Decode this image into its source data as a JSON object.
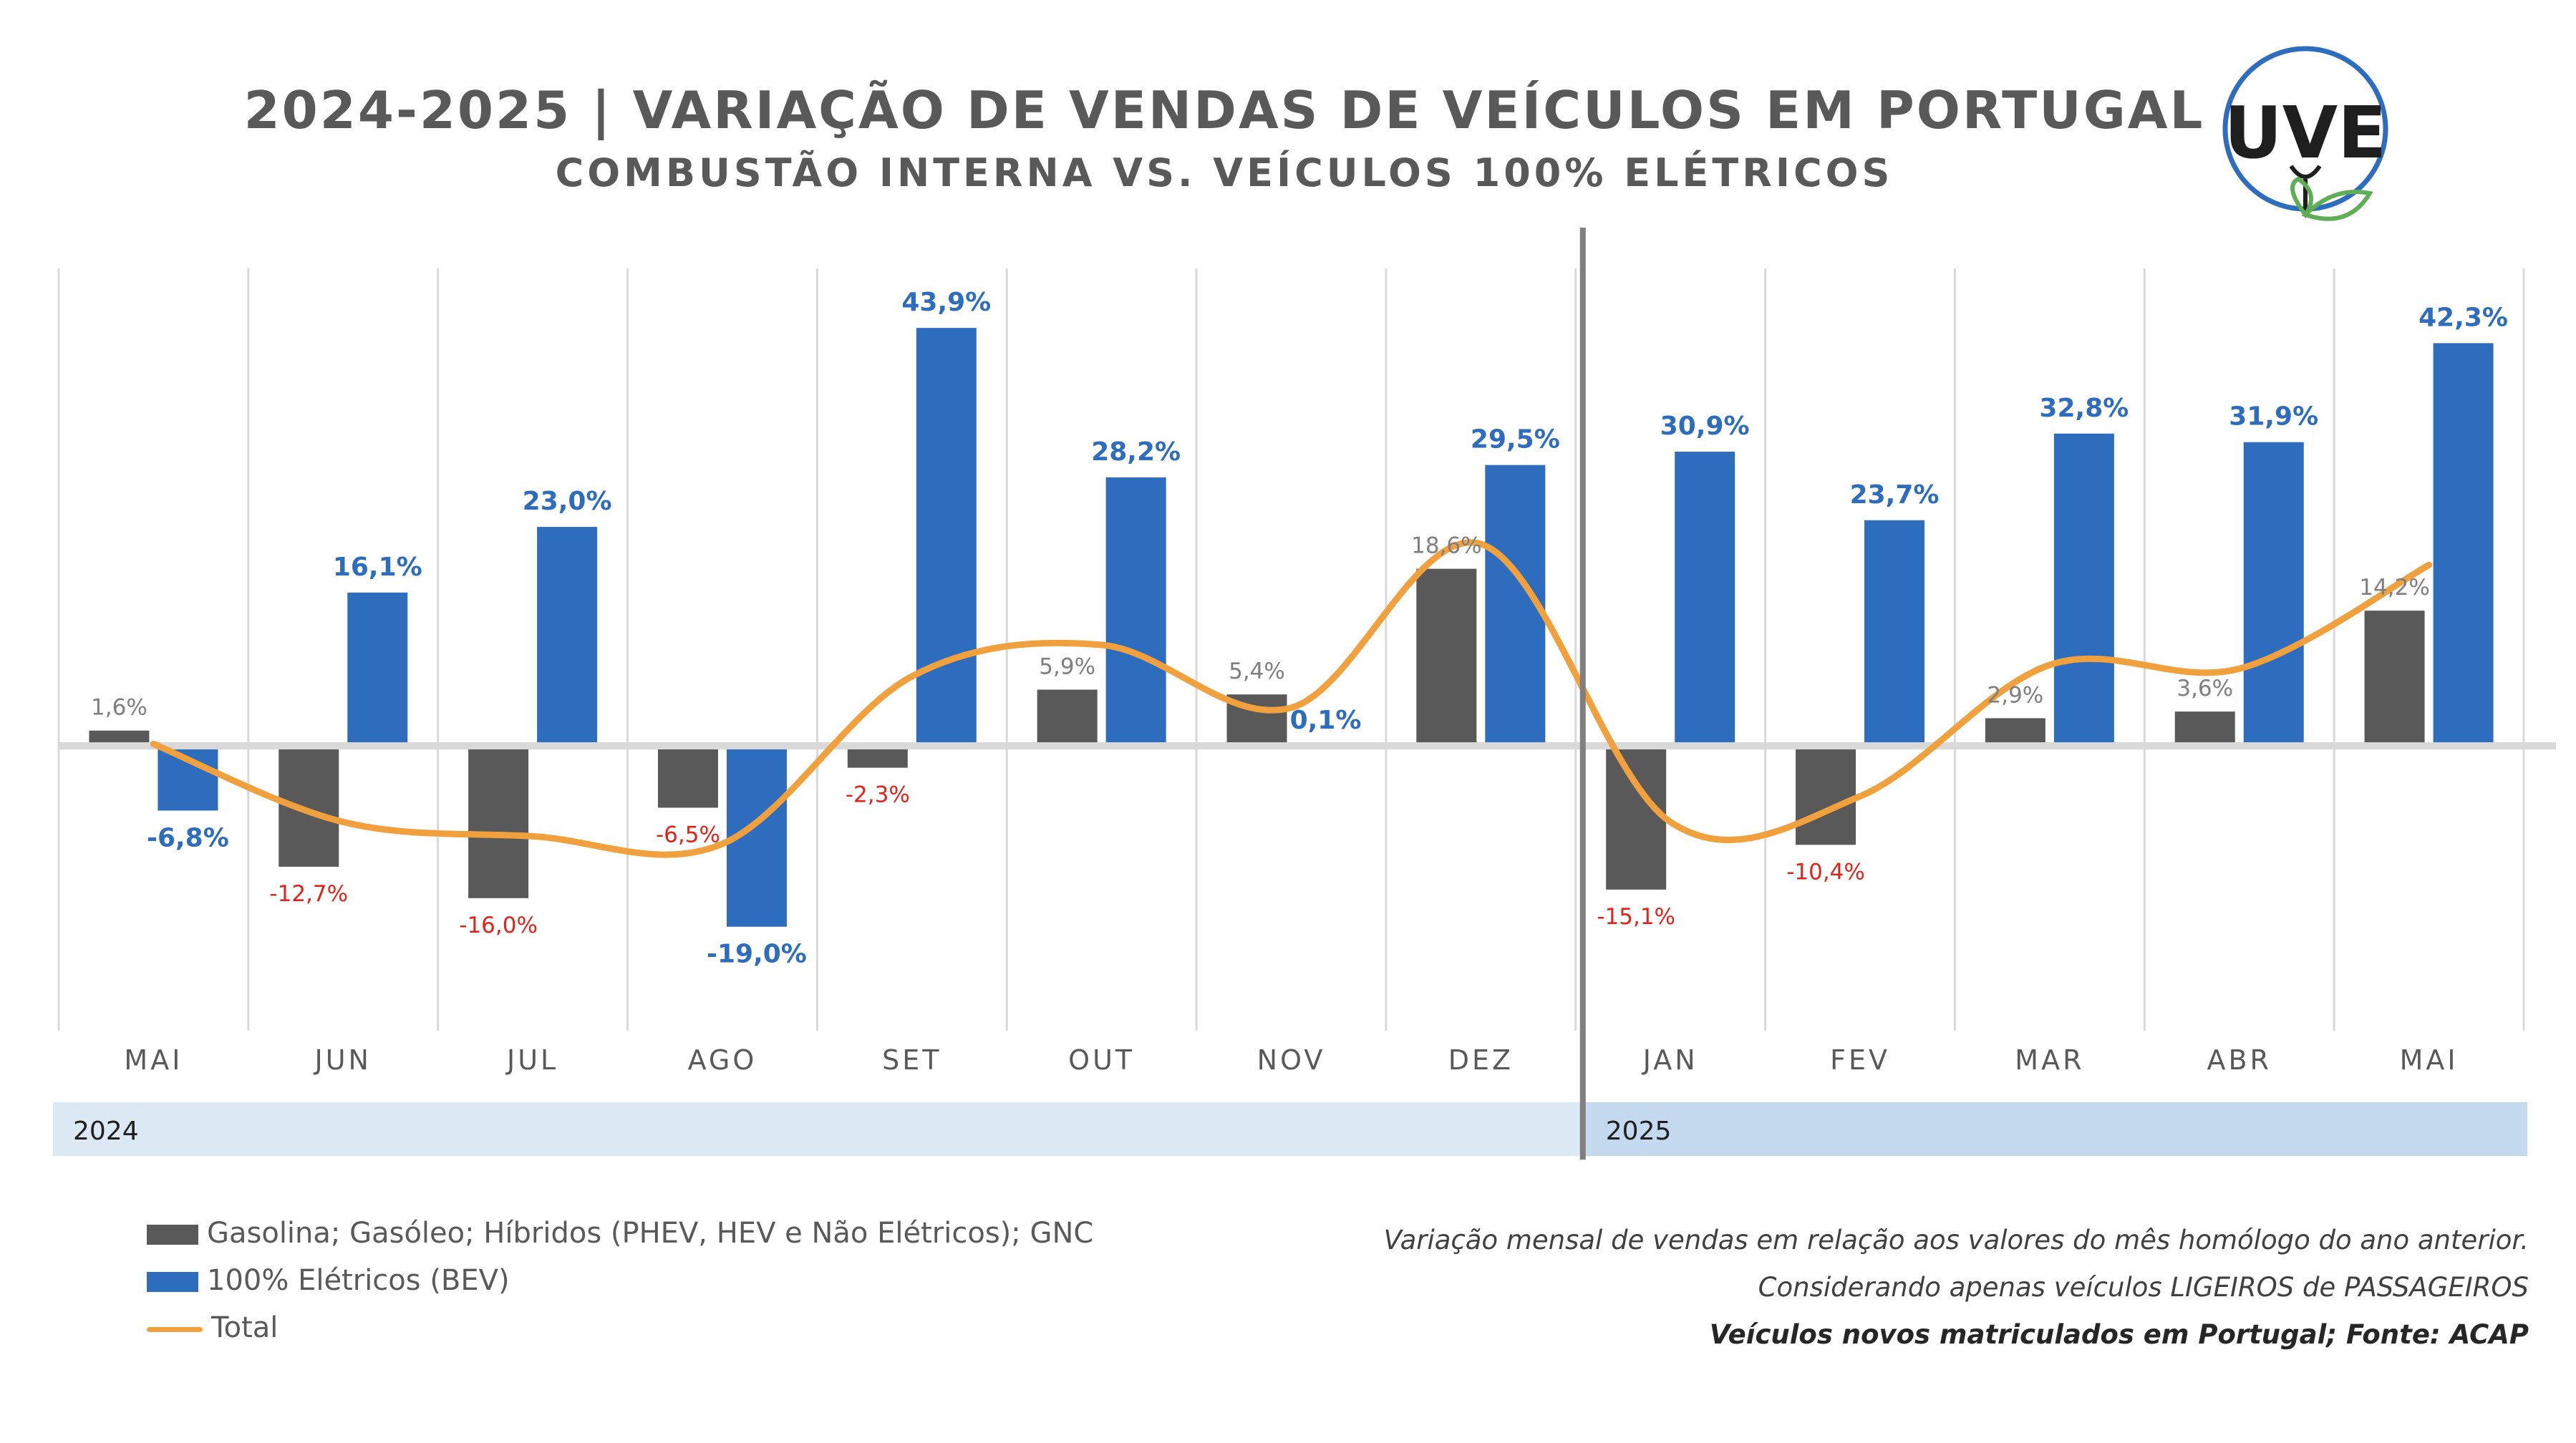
{
  "header": {
    "title": "2024-2025 | VARIAÇÃO DE VENDAS DE VEÍCULOS EM PORTUGAL",
    "subtitle": "COMBUSTÃO INTERNA VS. VEÍCULOS 100% ELÉTRICOS"
  },
  "logo": {
    "text": "UVE",
    "icon": "plug-leaf-logo"
  },
  "legend": {
    "ice": "Gasolina; Gasóleo; Híbridos (PHEV, HEV e Não Elétricos); GNC",
    "bev": "100% Elétricos (BEV)",
    "total": "Total"
  },
  "notes": {
    "line1": "Variação mensal de vendas em relação aos valores do mês homólogo do ano anterior.",
    "line2": "Considerando apenas veículos LIGEIROS de PASSAGEIROS",
    "line3": "Veículos novos matriculados em Portugal; Fonte: ACAP"
  },
  "colors": {
    "ice": "#595959",
    "bev": "#2E6DBE",
    "total": "#F0A03C",
    "neg_label": "#E0241B",
    "band_2024": "#DDE8F5",
    "band_2025": "#C4D8EE"
  },
  "chart_data": {
    "type": "bar",
    "categories": [
      "MAI",
      "JUN",
      "JUL",
      "AGO",
      "SET",
      "OUT",
      "NOV",
      "DEZ",
      "JAN",
      "FEV",
      "MAR",
      "ABR",
      "MAI"
    ],
    "years": [
      {
        "label": "2024",
        "from": 0,
        "to": 7
      },
      {
        "label": "2025",
        "from": 8,
        "to": 12
      }
    ],
    "series": [
      {
        "name": "Gasolina; Gasóleo; Híbridos (PHEV, HEV e Não Elétricos); GNC",
        "type": "bar",
        "values": [
          1.6,
          -12.7,
          -16.0,
          -6.5,
          -2.3,
          5.9,
          5.4,
          18.6,
          -15.1,
          -10.4,
          2.9,
          3.6,
          14.2
        ],
        "labels": [
          "1,6%",
          "-12,7%",
          "-16,0%",
          "-6,5%",
          "-2,3%",
          "5,9%",
          "5,4%",
          "18,6%",
          "-15,1%",
          "-10,4%",
          "2,9%",
          "3,6%",
          "14,2%"
        ]
      },
      {
        "name": "100% Elétricos (BEV)",
        "type": "bar",
        "values": [
          -6.8,
          16.1,
          23.0,
          -19.0,
          43.9,
          28.2,
          0.1,
          29.5,
          30.9,
          23.7,
          32.8,
          31.9,
          42.3
        ],
        "labels": [
          "-6,8%",
          "16,1%",
          "23,0%",
          "-19,0%",
          "43,9%",
          "28,2%",
          "0,1%",
          "29,5%",
          "30,9%",
          "23,7%",
          "32,8%",
          "31,9%",
          "42,3%"
        ]
      },
      {
        "name": "Total",
        "type": "line",
        "values": [
          0.2,
          -8.0,
          -9.5,
          -10.3,
          7.3,
          10.6,
          4.0,
          21.2,
          -8.0,
          -5.3,
          8.5,
          8.1,
          19.0
        ]
      }
    ],
    "ylim": [
      -30,
      52
    ],
    "unit": "%",
    "grid": true,
    "legend_position": "bottom-left"
  }
}
